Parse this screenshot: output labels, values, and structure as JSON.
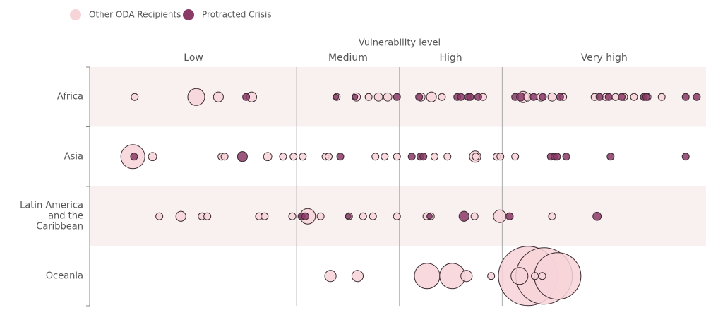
{
  "chart_data": {
    "type": "scatter",
    "x_label": "Vulnerability level",
    "xlim": [
      0,
      100
    ],
    "band_edges": [
      33.5,
      50.2,
      66.9
    ],
    "band_labels": [
      "Low",
      "Medium",
      "High",
      "Very high"
    ],
    "categories": [
      "Africa",
      "Asia",
      "Latin America and the Caribbean",
      "Oceania"
    ],
    "series": [
      {
        "name": "Other ODA Recipients",
        "color": "#f7d4d8",
        "x": [
          [
            7.2,
            17.2,
            20.8,
            26.2,
            40.0,
            43.2,
            45.2,
            46.8,
            48.3,
            53.7,
            55.4,
            57.1,
            63.8,
            70.3,
            71.0,
            73.2,
            75.0,
            76.8,
            81.9,
            83.7,
            85.3,
            86.7,
            88.3,
            90.5,
            92.8
          ],
          [
            6.9,
            10.1,
            21.3,
            21.8,
            28.8,
            31.3,
            33.0,
            34.5,
            38.2,
            38.7,
            46.3,
            47.8,
            49.8,
            55.9,
            58.0,
            62.5,
            62.6,
            66.0,
            66.6,
            69.0
          ],
          [
            11.2,
            14.7,
            18.1,
            19.0,
            27.4,
            28.3,
            32.8,
            35.3,
            37.4,
            42.0,
            44.3,
            45.9,
            49.8,
            54.6,
            55.3,
            62.4,
            66.5,
            68.1,
            75.0
          ],
          [
            71.1,
            73.7,
            75.9,
            54.7,
            58.8,
            69.7,
            39.0,
            43.4,
            61.1,
            65.1,
            72.2,
            73.4
          ]
        ],
        "size": [
          [
            1,
            5.8,
            2,
            2,
            1,
            1.4,
            1,
            1.4,
            1.4,
            1.4,
            2,
            1,
            1,
            2.6,
            1.4,
            1.4,
            1.4,
            1,
            1,
            1,
            1,
            1,
            1,
            1,
            1
          ],
          [
            11.6,
            1.4,
            1,
            1,
            1.4,
            1,
            1,
            1,
            1,
            1,
            1,
            1,
            1,
            1,
            1,
            2.6,
            1,
            1,
            1,
            1
          ],
          [
            1,
            2,
            1,
            1,
            1,
            1,
            1,
            4.8,
            1,
            1,
            1,
            1,
            1,
            1,
            1,
            1,
            3.2,
            1,
            1
          ],
          [
            70.6,
            64,
            43.6,
            13,
            13,
            5.8,
            2.6,
            2.6,
            2.6,
            1,
            1,
            1
          ]
        ]
      },
      {
        "name": "Protracted Crisis",
        "color": "#8b3a67",
        "x": [
          [
            25.3,
            39.9,
            43.0,
            49.8,
            53.4,
            59.6,
            60.2,
            61.4,
            61.7,
            63.0,
            69.0,
            69.9,
            72.0,
            73.5,
            76.3,
            82.7,
            84.2,
            86.3,
            89.9,
            90.3,
            96.7,
            98.5
          ],
          [
            7.1,
            24.7,
            40.6,
            52.2,
            53.6,
            54.1,
            74.8,
            75.4,
            75.8,
            77.3,
            84.5,
            96.7
          ],
          [
            34.3,
            34.9,
            41.9,
            55.1,
            60.7,
            68.1,
            82.3
          ],
          []
        ],
        "size": [
          [
            1,
            0.6,
            0.6,
            1,
            1,
            1,
            1,
            1,
            1,
            1,
            1,
            1.4,
            1,
            1,
            1,
            1,
            1,
            1,
            1,
            1,
            1,
            1
          ],
          [
            1,
            2,
            1,
            1,
            1,
            1,
            1,
            1,
            1,
            1,
            1,
            1
          ],
          [
            1,
            1,
            0.6,
            0.6,
            2,
            1,
            1.4
          ],
          []
        ]
      }
    ]
  }
}
